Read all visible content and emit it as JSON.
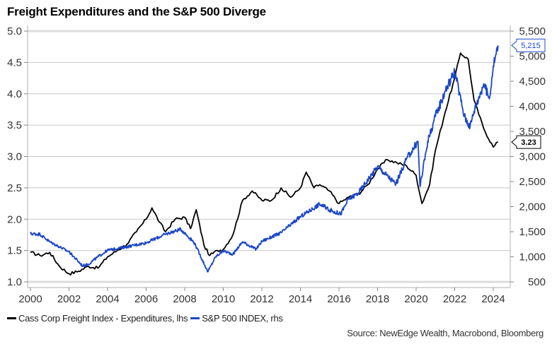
{
  "chart_data": {
    "type": "line",
    "title": "Freight Expenditures and the S&P 500 Diverge",
    "xlabel": "",
    "ylabel_left": "",
    "ylabel_right": "",
    "x_ticks": [
      "2000",
      "2002",
      "2004",
      "2006",
      "2008",
      "2010",
      "2012",
      "2014",
      "2016",
      "2018",
      "2020",
      "2022",
      "2024"
    ],
    "xlim": [
      2000,
      2024.25
    ],
    "ylim_left": [
      1.0,
      5.0
    ],
    "ylim_right": [
      500,
      5500
    ],
    "y_ticks_left": [
      "5.0",
      "4.5",
      "4.0",
      "3.5",
      "3.0",
      "2.5",
      "2.0",
      "1.5",
      "1.0"
    ],
    "y_ticks_right": [
      "5,500",
      "5,000",
      "4,500",
      "4,000",
      "3,500",
      "3,000",
      "2,500",
      "2,000",
      "1,500",
      "1,000",
      "500"
    ],
    "grid": true,
    "legend_position": "bottom-left",
    "series": [
      {
        "name": "Cass Corp Freight Index - Expenditures, lhs",
        "axis": "left",
        "color": "#000000",
        "last_value_label": "3.23",
        "x": [
          2000,
          2000.5,
          2001,
          2001.5,
          2002,
          2002.5,
          2003,
          2003.5,
          2004,
          2004.5,
          2005,
          2005.5,
          2006,
          2006.3,
          2006.7,
          2007,
          2007.5,
          2008,
          2008.3,
          2008.6,
          2009,
          2009.3,
          2009.7,
          2010,
          2010.5,
          2011,
          2011.5,
          2012,
          2012.5,
          2013,
          2013.5,
          2014,
          2014.3,
          2014.7,
          2015,
          2015.5,
          2016,
          2016.5,
          2017,
          2017.5,
          2018,
          2018.5,
          2019,
          2019.5,
          2020,
          2020.3,
          2020.7,
          2021,
          2021.5,
          2022,
          2022.3,
          2022.7,
          2023,
          2023.5,
          2024,
          2024.25
        ],
        "values": [
          1.47,
          1.42,
          1.47,
          1.25,
          1.13,
          1.17,
          1.25,
          1.22,
          1.4,
          1.5,
          1.6,
          1.8,
          2.0,
          2.18,
          1.95,
          1.8,
          2.0,
          2.03,
          1.85,
          2.15,
          1.58,
          1.42,
          1.5,
          1.52,
          1.75,
          2.3,
          2.45,
          2.3,
          2.3,
          2.5,
          2.35,
          2.5,
          2.75,
          2.5,
          2.55,
          2.45,
          2.25,
          2.35,
          2.4,
          2.55,
          2.8,
          2.95,
          2.9,
          2.85,
          2.7,
          2.25,
          2.55,
          3.1,
          3.7,
          4.25,
          4.65,
          4.55,
          3.9,
          3.45,
          3.15,
          3.23
        ]
      },
      {
        "name": "S&P 500 INDEX, rhs",
        "axis": "right",
        "color": "#1a46c8",
        "last_value_label": "5,215",
        "x": [
          2000,
          2000.5,
          2001,
          2001.5,
          2002,
          2002.7,
          2003,
          2003.5,
          2004,
          2005,
          2006,
          2007,
          2007.8,
          2008.5,
          2009.2,
          2009.6,
          2010,
          2010.5,
          2011,
          2011.7,
          2012,
          2013,
          2014,
          2015,
          2015.7,
          2016.1,
          2016.5,
          2017,
          2018,
          2018.95,
          2019.5,
          2020.1,
          2020.2,
          2020.6,
          2021,
          2021.5,
          2022,
          2022.5,
          2022.8,
          2023,
          2023.5,
          2023.8,
          2024,
          2024.25
        ],
        "values": [
          1460,
          1450,
          1300,
          1200,
          1100,
          820,
          850,
          1000,
          1130,
          1200,
          1280,
          1450,
          1550,
          1280,
          700,
          1000,
          1120,
          1050,
          1300,
          1150,
          1310,
          1480,
          1800,
          2050,
          1900,
          1860,
          2150,
          2270,
          2800,
          2450,
          2950,
          3300,
          2400,
          3300,
          3800,
          4300,
          4700,
          3800,
          3600,
          3900,
          4450,
          4150,
          4800,
          5215
        ]
      }
    ]
  },
  "legend": {
    "items": [
      {
        "label": "Cass Corp Freight Index - Expenditures, lhs",
        "color": "#000000"
      },
      {
        "label": "S&P 500 INDEX, rhs",
        "color": "#1a46c8"
      }
    ]
  },
  "source": "Source: NewEdge Wealth, Macrobond, Bloomberg"
}
